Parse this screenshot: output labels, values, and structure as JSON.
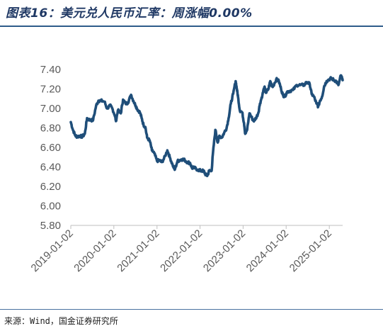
{
  "header": {
    "title": "图表16：美元兑人民币汇率：周涨幅0.00%"
  },
  "footer": {
    "source": "来源：Wind，国金证券研究所"
  },
  "colors": {
    "accent": "#1f3864",
    "line": "#1f4e79",
    "rule": "#2e5c8a"
  },
  "chart_data": {
    "type": "line",
    "title": "",
    "xlabel": "",
    "ylabel": "",
    "ylim": [
      5.8,
      7.4
    ],
    "yticks": [
      "5.80",
      "6.00",
      "6.20",
      "6.40",
      "6.60",
      "6.80",
      "7.00",
      "7.20",
      "7.40"
    ],
    "xticks": [
      "2019-01-02",
      "2020-01-02",
      "2021-01-02",
      "2022-01-02",
      "2023-01-02",
      "2024-01-02",
      "2025-01-02"
    ],
    "xlim": [
      "2019-01-02",
      "2025-04-25"
    ],
    "grid": false,
    "legend": "none",
    "series": [
      {
        "values": [
          [
            "2019-01-02",
            6.86
          ],
          [
            "2019-01-20",
            6.78
          ],
          [
            "2019-02-10",
            6.72
          ],
          [
            "2019-02-28",
            6.71
          ],
          [
            "2019-03-20",
            6.72
          ],
          [
            "2019-04-10",
            6.71
          ],
          [
            "2019-05-01",
            6.74
          ],
          [
            "2019-05-20",
            6.9
          ],
          [
            "2019-06-15",
            6.88
          ],
          [
            "2019-07-10",
            6.88
          ],
          [
            "2019-08-05",
            7.03
          ],
          [
            "2019-08-25",
            7.08
          ],
          [
            "2019-09-15",
            7.08
          ],
          [
            "2019-10-15",
            7.07
          ],
          [
            "2019-11-05",
            7.0
          ],
          [
            "2019-12-01",
            7.03
          ],
          [
            "2019-12-20",
            7.0
          ],
          [
            "2020-01-10",
            6.93
          ],
          [
            "2020-01-20",
            6.87
          ],
          [
            "2020-02-05",
            6.98
          ],
          [
            "2020-03-01",
            6.95
          ],
          [
            "2020-03-20",
            7.09
          ],
          [
            "2020-04-10",
            7.05
          ],
          [
            "2020-05-01",
            7.06
          ],
          [
            "2020-05-27",
            7.14
          ],
          [
            "2020-06-15",
            7.08
          ],
          [
            "2020-07-05",
            7.03
          ],
          [
            "2020-07-20",
            6.99
          ],
          [
            "2020-08-10",
            6.96
          ],
          [
            "2020-08-25",
            6.9
          ],
          [
            "2020-09-10",
            6.83
          ],
          [
            "2020-09-25",
            6.81
          ],
          [
            "2020-10-10",
            6.7
          ],
          [
            "2020-11-01",
            6.67
          ],
          [
            "2020-11-20",
            6.57
          ],
          [
            "2020-12-10",
            6.54
          ],
          [
            "2021-01-02",
            6.46
          ],
          [
            "2021-01-20",
            6.47
          ],
          [
            "2021-02-10",
            6.45
          ],
          [
            "2021-03-01",
            6.48
          ],
          [
            "2021-03-31",
            6.57
          ],
          [
            "2021-04-20",
            6.5
          ],
          [
            "2021-05-15",
            6.42
          ],
          [
            "2021-06-01",
            6.37
          ],
          [
            "2021-06-25",
            6.46
          ],
          [
            "2021-07-15",
            6.47
          ],
          [
            "2021-08-05",
            6.48
          ],
          [
            "2021-08-25",
            6.47
          ],
          [
            "2021-09-15",
            6.45
          ],
          [
            "2021-10-10",
            6.44
          ],
          [
            "2021-10-25",
            6.39
          ],
          [
            "2021-11-15",
            6.39
          ],
          [
            "2021-12-15",
            6.37
          ],
          [
            "2022-01-10",
            6.36
          ],
          [
            "2022-01-31",
            6.36
          ],
          [
            "2022-02-20",
            6.32
          ],
          [
            "2022-03-05",
            6.31
          ],
          [
            "2022-03-20",
            6.36
          ],
          [
            "2022-04-10",
            6.36
          ],
          [
            "2022-04-22",
            6.55
          ],
          [
            "2022-05-12",
            6.78
          ],
          [
            "2022-06-01",
            6.65
          ],
          [
            "2022-06-15",
            6.72
          ],
          [
            "2022-07-05",
            6.7
          ],
          [
            "2022-07-25",
            6.75
          ],
          [
            "2022-08-15",
            6.8
          ],
          [
            "2022-09-01",
            6.9
          ],
          [
            "2022-09-20",
            7.05
          ],
          [
            "2022-10-10",
            7.15
          ],
          [
            "2022-10-31",
            7.28
          ],
          [
            "2022-11-10",
            7.2
          ],
          [
            "2022-11-20",
            7.12
          ],
          [
            "2022-12-05",
            6.98
          ],
          [
            "2022-12-25",
            6.96
          ],
          [
            "2023-01-10",
            6.85
          ],
          [
            "2023-01-20",
            6.74
          ],
          [
            "2023-02-05",
            6.78
          ],
          [
            "2023-02-25",
            6.95
          ],
          [
            "2023-03-10",
            6.92
          ],
          [
            "2023-04-01",
            6.87
          ],
          [
            "2023-04-20",
            6.9
          ],
          [
            "2023-05-10",
            6.95
          ],
          [
            "2023-05-25",
            7.05
          ],
          [
            "2023-06-15",
            7.14
          ],
          [
            "2023-07-01",
            7.22
          ],
          [
            "2023-07-15",
            7.16
          ],
          [
            "2023-08-05",
            7.2
          ],
          [
            "2023-08-20",
            7.28
          ],
          [
            "2023-09-10",
            7.22
          ],
          [
            "2023-10-10",
            7.3
          ],
          [
            "2023-11-01",
            7.28
          ],
          [
            "2023-11-20",
            7.2
          ],
          [
            "2023-12-05",
            7.14
          ],
          [
            "2023-12-20",
            7.12
          ],
          [
            "2024-01-10",
            7.17
          ],
          [
            "2024-02-01",
            7.18
          ],
          [
            "2024-03-01",
            7.19
          ],
          [
            "2024-04-01",
            7.24
          ],
          [
            "2024-05-01",
            7.24
          ],
          [
            "2024-06-01",
            7.24
          ],
          [
            "2024-06-25",
            7.27
          ],
          [
            "2024-07-20",
            7.25
          ],
          [
            "2024-08-05",
            7.15
          ],
          [
            "2024-08-25",
            7.12
          ],
          [
            "2024-09-15",
            7.05
          ],
          [
            "2024-09-30",
            7.02
          ],
          [
            "2024-10-15",
            7.08
          ],
          [
            "2024-11-01",
            7.12
          ],
          [
            "2024-11-20",
            7.23
          ],
          [
            "2024-12-10",
            7.28
          ],
          [
            "2025-01-02",
            7.3
          ],
          [
            "2025-01-20",
            7.31
          ],
          [
            "2025-02-10",
            7.29
          ],
          [
            "2025-03-01",
            7.28
          ],
          [
            "2025-03-20",
            7.24
          ],
          [
            "2025-04-10",
            7.34
          ],
          [
            "2025-04-25",
            7.29
          ]
        ]
      }
    ]
  }
}
